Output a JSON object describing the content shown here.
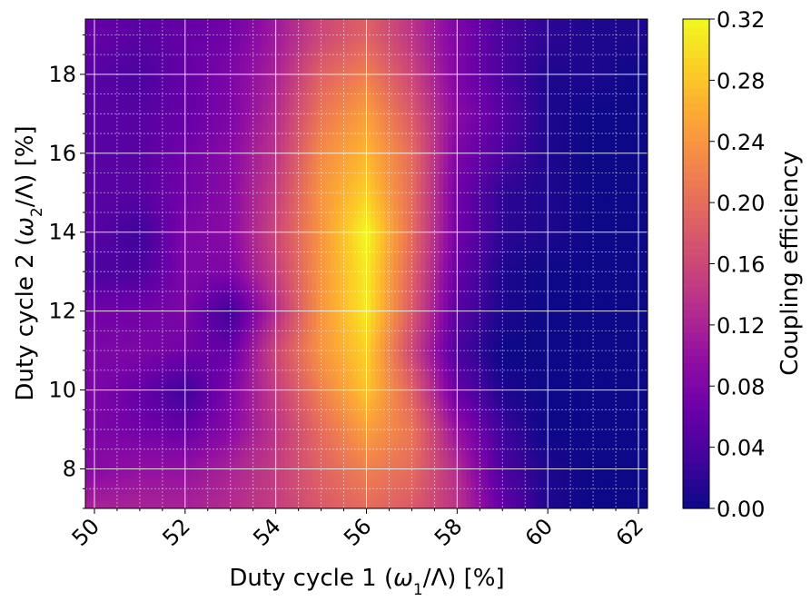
{
  "chart_data": {
    "type": "heatmap",
    "title": "",
    "xlabel": "Duty cycle 1 (ω1/Λ) [%]",
    "xlabel_parts": [
      "Duty cycle 1 (",
      "ω",
      "1",
      "/Λ) [%]"
    ],
    "ylabel": "Duty cycle 2 (ω2/Λ) [%]",
    "ylabel_parts": [
      "Duty cycle 2 (",
      "ω",
      "2",
      "/Λ) [%]"
    ],
    "xlim": [
      49.8,
      62.2
    ],
    "ylim": [
      7.0,
      19.4
    ],
    "x_ticks": [
      50,
      52,
      54,
      56,
      58,
      60,
      62
    ],
    "x_tick_labels": [
      "50",
      "52",
      "54",
      "56",
      "58",
      "60",
      "62"
    ],
    "y_ticks": [
      8,
      10,
      12,
      14,
      16,
      18
    ],
    "y_tick_labels": [
      "8",
      "10",
      "12",
      "14",
      "16",
      "18"
    ],
    "x_minor_step": 0.5,
    "y_minor_step": 0.5,
    "grid": true,
    "colormap": "plasma",
    "colorbar": {
      "label": "Coupling efficiency",
      "min": 0.0,
      "max": 0.32,
      "ticks": [
        0.0,
        0.04,
        0.08,
        0.12,
        0.16,
        0.2,
        0.24,
        0.28,
        0.32
      ],
      "tick_labels": [
        "0.00",
        "0.04",
        "0.08",
        "0.12",
        "0.16",
        "0.20",
        "0.24",
        "0.28",
        "0.32"
      ]
    },
    "x": [
      50,
      51,
      52,
      53,
      54,
      55,
      56,
      57,
      58,
      59,
      60,
      61,
      62
    ],
    "y": [
      7,
      8,
      9,
      10,
      11,
      12,
      13,
      14,
      15,
      16,
      17,
      18,
      19
    ],
    "z": [
      [
        0.12,
        0.12,
        0.12,
        0.13,
        0.15,
        0.18,
        0.2,
        0.18,
        0.14,
        0.06,
        0.01,
        0.0,
        0.0
      ],
      [
        0.09,
        0.1,
        0.1,
        0.12,
        0.15,
        0.19,
        0.22,
        0.2,
        0.13,
        0.04,
        0.01,
        0.0,
        0.0
      ],
      [
        0.08,
        0.07,
        0.06,
        0.09,
        0.14,
        0.2,
        0.25,
        0.21,
        0.1,
        0.03,
        0.0,
        0.0,
        0.0
      ],
      [
        0.08,
        0.06,
        0.03,
        0.08,
        0.15,
        0.22,
        0.28,
        0.19,
        0.06,
        0.01,
        0.0,
        0.0,
        0.0
      ],
      [
        0.08,
        0.08,
        0.07,
        0.06,
        0.16,
        0.24,
        0.29,
        0.16,
        0.04,
        0.0,
        0.0,
        0.0,
        0.0
      ],
      [
        0.07,
        0.07,
        0.08,
        0.03,
        0.13,
        0.24,
        0.31,
        0.18,
        0.05,
        0.01,
        0.0,
        0.0,
        0.0
      ],
      [
        0.04,
        0.04,
        0.08,
        0.08,
        0.15,
        0.24,
        0.31,
        0.19,
        0.06,
        0.01,
        0.0,
        0.0,
        0.0
      ],
      [
        0.05,
        0.03,
        0.08,
        0.09,
        0.16,
        0.24,
        0.32,
        0.2,
        0.07,
        0.02,
        0.01,
        0.0,
        0.0
      ],
      [
        0.05,
        0.05,
        0.07,
        0.09,
        0.15,
        0.24,
        0.29,
        0.2,
        0.07,
        0.02,
        0.01,
        0.0,
        0.0
      ],
      [
        0.05,
        0.05,
        0.07,
        0.09,
        0.14,
        0.23,
        0.27,
        0.2,
        0.08,
        0.04,
        0.01,
        0.0,
        0.0
      ],
      [
        0.05,
        0.05,
        0.06,
        0.08,
        0.13,
        0.21,
        0.25,
        0.18,
        0.09,
        0.05,
        0.01,
        0.0,
        0.0
      ],
      [
        0.05,
        0.04,
        0.06,
        0.08,
        0.12,
        0.19,
        0.22,
        0.16,
        0.08,
        0.04,
        0.01,
        0.01,
        0.0
      ],
      [
        0.06,
        0.05,
        0.06,
        0.07,
        0.11,
        0.16,
        0.19,
        0.14,
        0.08,
        0.04,
        0.02,
        0.01,
        0.01
      ]
    ]
  }
}
